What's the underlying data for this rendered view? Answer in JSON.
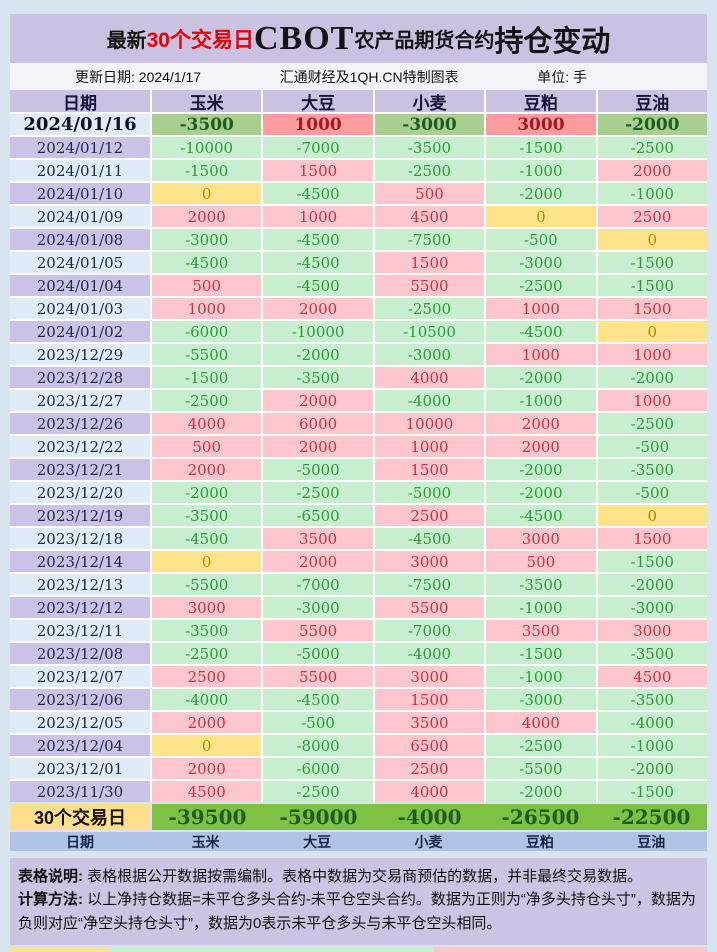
{
  "title": {
    "prefix": "最新",
    "highlight": "30个交易日",
    "brand": "CBOT",
    "middle": "农产品期货合约",
    "suffix": "持仓变动"
  },
  "meta": {
    "update": "更新日期: 2024/1/17",
    "source": "汇通财经及1QH.CN特制图表",
    "unit": "单位: 手"
  },
  "colors": {
    "negative_bg": "#c7efcf",
    "positive_bg": "#ffc6cd",
    "zero_bg": "#ffe38b",
    "latest_negative_bg": "#a8cf8d",
    "latest_positive_bg": "#ff9ca0",
    "summary_bg": "#7fc142",
    "banner_bg": "#cbc1e1"
  },
  "chart_data": {
    "type": "table",
    "title": "最新30个交易日CBOT农产品期货合约持仓变动",
    "unit": "手",
    "updated": "2024/1/17",
    "columns": [
      "日期",
      "玉米",
      "大豆",
      "小麦",
      "豆粕",
      "豆油"
    ],
    "rows": [
      {
        "date": "2024/01/16",
        "values": [
          -3500,
          1000,
          -3000,
          3000,
          -2000
        ]
      },
      {
        "date": "2024/01/12",
        "values": [
          -10000,
          -7000,
          -3500,
          -1500,
          -2500
        ]
      },
      {
        "date": "2024/01/11",
        "values": [
          -1500,
          1500,
          -2500,
          -1000,
          2000
        ]
      },
      {
        "date": "2024/01/10",
        "values": [
          0,
          -4500,
          500,
          -2000,
          -1000
        ]
      },
      {
        "date": "2024/01/09",
        "values": [
          2000,
          1000,
          4500,
          0,
          2500
        ]
      },
      {
        "date": "2024/01/08",
        "values": [
          -3000,
          -4500,
          -7500,
          -500,
          0
        ]
      },
      {
        "date": "2024/01/05",
        "values": [
          -4500,
          -4500,
          1500,
          -3000,
          -1500
        ]
      },
      {
        "date": "2024/01/04",
        "values": [
          500,
          -4500,
          5500,
          -2500,
          -1500
        ]
      },
      {
        "date": "2024/01/03",
        "values": [
          1000,
          2000,
          -2500,
          1000,
          1500
        ]
      },
      {
        "date": "2024/01/02",
        "values": [
          -6000,
          -10000,
          -10500,
          -4500,
          0
        ]
      },
      {
        "date": "2023/12/29",
        "values": [
          -5500,
          -2000,
          -3000,
          1000,
          1000
        ]
      },
      {
        "date": "2023/12/28",
        "values": [
          -1500,
          -3500,
          4000,
          -2000,
          -2000
        ]
      },
      {
        "date": "2023/12/27",
        "values": [
          -2500,
          2000,
          -4000,
          -1000,
          1000
        ]
      },
      {
        "date": "2023/12/26",
        "values": [
          4000,
          6000,
          10000,
          2000,
          -2500
        ]
      },
      {
        "date": "2023/12/22",
        "values": [
          500,
          2000,
          1000,
          2000,
          -500
        ]
      },
      {
        "date": "2023/12/21",
        "values": [
          2000,
          -5000,
          1500,
          -2000,
          -3500
        ]
      },
      {
        "date": "2023/12/20",
        "values": [
          -2000,
          -2500,
          -5000,
          -2000,
          -500
        ]
      },
      {
        "date": "2023/12/19",
        "values": [
          -3500,
          -6500,
          2500,
          -4500,
          0
        ]
      },
      {
        "date": "2023/12/18",
        "values": [
          -4500,
          3500,
          -4500,
          3000,
          1500
        ]
      },
      {
        "date": "2023/12/14",
        "values": [
          0,
          2000,
          3000,
          500,
          -1500
        ]
      },
      {
        "date": "2023/12/13",
        "values": [
          -5500,
          -7000,
          -7500,
          -3500,
          -2000
        ]
      },
      {
        "date": "2023/12/12",
        "values": [
          3000,
          -3000,
          5500,
          -1000,
          -3000
        ]
      },
      {
        "date": "2023/12/11",
        "values": [
          -3500,
          5500,
          -7000,
          3500,
          3000
        ]
      },
      {
        "date": "2023/12/08",
        "values": [
          -2500,
          -5000,
          -4000,
          -1500,
          -3500
        ]
      },
      {
        "date": "2023/12/07",
        "values": [
          2500,
          5500,
          3000,
          -1000,
          4500
        ]
      },
      {
        "date": "2023/12/06",
        "values": [
          -4000,
          -4500,
          1500,
          -3000,
          -3500
        ]
      },
      {
        "date": "2023/12/05",
        "values": [
          2000,
          -500,
          3500,
          4000,
          -4000
        ]
      },
      {
        "date": "2023/12/04",
        "values": [
          0,
          -8000,
          6500,
          -2500,
          -1000
        ]
      },
      {
        "date": "2023/12/01",
        "values": [
          2000,
          -6000,
          2500,
          -5500,
          -2000
        ]
      },
      {
        "date": "2023/11/30",
        "values": [
          4500,
          -2500,
          4000,
          -2000,
          -1500
        ]
      }
    ],
    "summary": {
      "label": "30个交易日",
      "values": [
        -39500,
        -59000,
        -4000,
        -26500,
        -22500
      ]
    }
  },
  "notes": {
    "line1_label": "表格说明:",
    "line1_text": " 表格根据公开数据按需编制。表格中数据为交易商预估的数据，并非最终交易数据。",
    "line2_label": "计算方法:",
    "line2_text": " 以上净持仓数据=未平仓多头合约-未平仓空头合约。数据为正则为“净多头持仓头寸”，数据为负则对应“净空头持仓头寸”，数据为0表示未平仓多头与未平仓空头相同。"
  }
}
